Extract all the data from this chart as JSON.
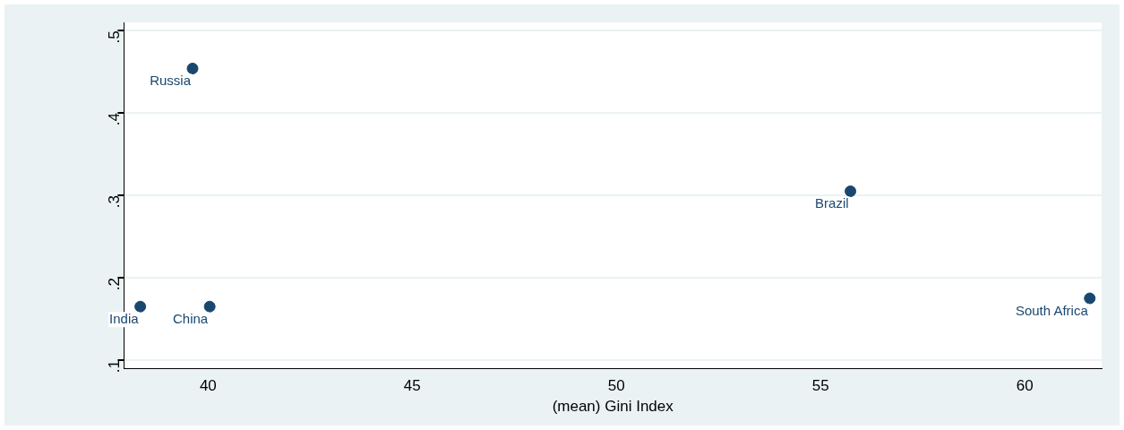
{
  "chart_data": {
    "type": "scatter",
    "xlabel": "(mean) Gini Index",
    "series": [
      {
        "color": "#1a476f",
        "x": [
          39.62,
          55.73,
          38.34,
          40.04,
          61.59
        ],
        "values": [
          0.454,
          0.305,
          0.165,
          0.165,
          0.175
        ]
      }
    ],
    "annotations": [
      {
        "text": "Russia",
        "x": 39.62,
        "y": 0.454
      },
      {
        "text": "Brazil",
        "x": 55.73,
        "y": 0.305
      },
      {
        "text": "India",
        "x": 38.34,
        "y": 0.165
      },
      {
        "text": "China",
        "x": 40.04,
        "y": 0.165
      },
      {
        "text": "South Africa",
        "x": 61.59,
        "y": 0.175
      }
    ],
    "xlim": [
      37.94,
      61.88
    ],
    "xticks": [
      40,
      45,
      50,
      55,
      60
    ],
    "ylim": [
      0.09,
      0.51
    ],
    "yticks": [
      {
        "value": 0.1,
        "label": ".1"
      },
      {
        "value": 0.2,
        "label": ".2"
      },
      {
        "value": 0.3,
        "label": ".3"
      },
      {
        "value": 0.4,
        "label": ".4"
      },
      {
        "value": 0.5,
        "label": ".5"
      }
    ],
    "grid": "y",
    "marker": "circle",
    "legend": false
  }
}
